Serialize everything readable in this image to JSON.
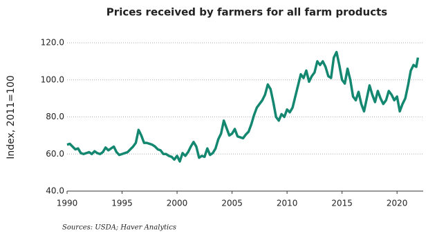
{
  "chart_data": {
    "type": "line",
    "title": "Prices received by farmers for all farm products",
    "y_label": "Index, 2011=100",
    "source": "Sources: USDA; Haver Analytics",
    "x": [
      1990,
      1990.25,
      1990.5,
      1990.75,
      1991,
      1991.25,
      1991.5,
      1991.75,
      1992,
      1992.25,
      1992.5,
      1992.75,
      1993,
      1993.25,
      1993.5,
      1993.75,
      1994,
      1994.25,
      1994.5,
      1994.75,
      1995,
      1995.25,
      1995.5,
      1995.75,
      1996,
      1996.25,
      1996.5,
      1996.75,
      1997,
      1997.25,
      1997.5,
      1997.75,
      1998,
      1998.25,
      1998.5,
      1998.75,
      1999,
      1999.25,
      1999.5,
      1999.75,
      2000,
      2000.25,
      2000.5,
      2000.75,
      2001,
      2001.25,
      2001.5,
      2001.75,
      2002,
      2002.25,
      2002.5,
      2002.75,
      2003,
      2003.25,
      2003.5,
      2003.75,
      2004,
      2004.25,
      2004.5,
      2004.75,
      2005,
      2005.25,
      2005.5,
      2005.75,
      2006,
      2006.25,
      2006.5,
      2006.75,
      2007,
      2007.25,
      2007.5,
      2007.75,
      2008,
      2008.25,
      2008.5,
      2008.75,
      2009,
      2009.25,
      2009.5,
      2009.75,
      2010,
      2010.25,
      2010.5,
      2010.75,
      2011,
      2011.25,
      2011.5,
      2011.75,
      2012,
      2012.25,
      2012.5,
      2012.75,
      2013,
      2013.25,
      2013.5,
      2013.75,
      2014,
      2014.25,
      2014.5,
      2014.75,
      2015,
      2015.25,
      2015.5,
      2015.75,
      2016,
      2016.25,
      2016.5,
      2016.75,
      2017,
      2017.25,
      2017.5,
      2017.75,
      2018,
      2018.25,
      2018.5,
      2018.75,
      2019,
      2019.25,
      2019.5,
      2019.75,
      2020,
      2020.25,
      2020.5,
      2020.75,
      2021,
      2021.25,
      2021.5,
      2021.75,
      2021.9
    ],
    "series": [
      {
        "name": "Prices received",
        "color": "#13876f",
        "values": [
          65,
          65.5,
          64,
          62.5,
          63,
          60.5,
          60,
          60.5,
          61,
          60,
          61.5,
          60.5,
          60,
          61,
          63.5,
          62,
          63,
          64,
          61,
          59.5,
          60,
          60.5,
          61,
          62.5,
          64,
          66,
          73,
          70,
          66,
          66,
          65.5,
          65,
          64,
          62.5,
          62,
          60,
          60,
          59,
          58.5,
          57,
          59,
          56,
          60.5,
          59,
          61,
          64,
          66.5,
          64,
          58,
          59,
          58.5,
          63,
          59.5,
          60.5,
          63,
          68,
          71,
          78,
          74,
          70,
          71,
          73.5,
          69.5,
          69,
          68.5,
          70.5,
          72,
          76,
          81,
          85,
          87,
          89,
          92,
          97.5,
          95,
          88,
          80,
          78,
          81.5,
          80,
          84,
          82.5,
          85,
          91,
          97,
          103,
          101,
          105,
          99,
          102,
          104,
          110,
          108,
          110,
          107,
          102,
          101,
          112,
          115,
          108,
          100,
          98,
          106,
          100,
          91,
          89,
          93.5,
          87,
          83,
          90,
          97,
          92,
          88,
          94,
          90,
          87,
          89,
          94,
          92,
          89,
          91,
          83,
          87,
          90,
          97,
          105,
          108,
          107,
          112
        ]
      }
    ],
    "xlim": [
      1990,
      2022
    ],
    "xticks": [
      1990,
      1995,
      2000,
      2005,
      2010,
      2015,
      2020
    ],
    "ylim": [
      40,
      120
    ],
    "yticks": [
      {
        "value": 40,
        "label": "40.0"
      },
      {
        "value": 60,
        "label": "60.0"
      },
      {
        "value": 80,
        "label": "80.0"
      },
      {
        "value": 100,
        "label": "100.0"
      },
      {
        "value": 120,
        "label": "120.0"
      }
    ],
    "grid": true
  }
}
